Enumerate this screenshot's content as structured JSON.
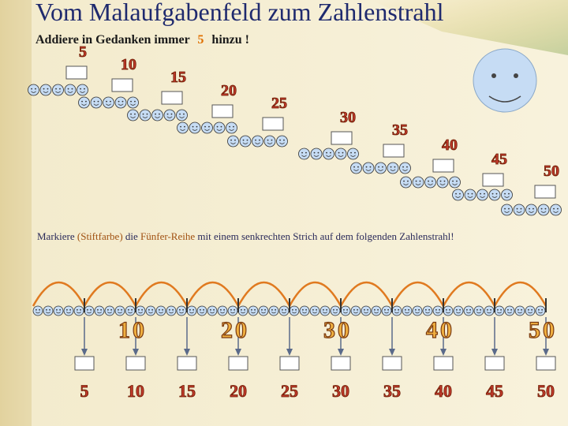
{
  "header": {
    "title": "Vom Malaufgabenfeld zum Zahlenstrahl",
    "subtitle": [
      "Addiere  in  Gedanken  immer",
      "5",
      "hinzu !"
    ]
  },
  "staircase": {
    "labels": [
      "5",
      "10",
      "15",
      "20",
      "25",
      "30",
      "35",
      "40",
      "45",
      "50"
    ]
  },
  "instruction": [
    "Markiere",
    "(Stiftfarbe)",
    "die",
    "Fünfer-Reihe",
    "mit einem senkrechten Strich auf dem folgenden Zahlenstrahl!"
  ],
  "number_line": {
    "labels": [
      "10",
      "20",
      "30",
      "40",
      "50"
    ],
    "answers": [
      "5",
      "10",
      "15",
      "20",
      "25",
      "30",
      "35",
      "40",
      "45",
      "50"
    ]
  }
}
